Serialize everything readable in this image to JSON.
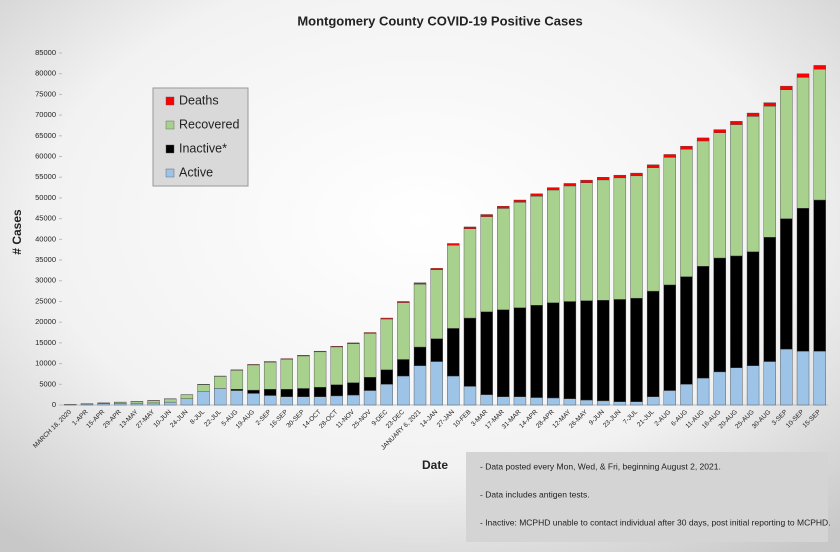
{
  "chart_data": {
    "type": "stacked_bar",
    "title": "Montgomery County COVID-19 Positive Cases",
    "y_label": "# Cases",
    "x_label": "Date",
    "categories": [
      "MARCH 18, 2020",
      "1-APR",
      "15-APR",
      "29-APR",
      "13-MAY",
      "27-MAY",
      "10-JUN",
      "24-JUN",
      "8-JUL",
      "22-JUL",
      "5-AUG",
      "19-AUG",
      "2-SEP",
      "16-SEP",
      "30-SEP",
      "14-OCT",
      "28-OCT",
      "11-NOV",
      "25-NOV",
      "9-DEC",
      "23-DEC",
      "JANUARY 6, 2021",
      "14-JAN",
      "27-JAN",
      "10-FEB",
      "3-MAR",
      "17-MAR",
      "31-MAR",
      "14-APR",
      "28-APR",
      "12-MAY",
      "26-MAY",
      "9-JUN",
      "23-JUN",
      "7-JUL",
      "21-JUL",
      "2-AUG",
      "6-AUG",
      "11-AUG",
      "16-AUG",
      "20-AUG",
      "25-AUG",
      "30-AUG",
      "3-SEP",
      "10-SEP",
      "15-SEP"
    ],
    "series": [
      {
        "name": "Active",
        "color": "#9dc3e6",
        "values": [
          90,
          250,
          350,
          400,
          450,
          500,
          700,
          1500,
          3200,
          4000,
          3500,
          2800,
          2300,
          2000,
          2000,
          2000,
          2200,
          2400,
          3500,
          5000,
          7000,
          9500,
          10500,
          7000,
          4500,
          2500,
          2000,
          2000,
          1800,
          1700,
          1500,
          1200,
          1000,
          800,
          800,
          2000,
          3500,
          5000,
          6500,
          8000,
          9000,
          9500,
          10500,
          13500,
          13000,
          13000
        ]
      },
      {
        "name": "Inactive*",
        "color": "#000000",
        "values": [
          0,
          0,
          0,
          0,
          0,
          0,
          0,
          0,
          0,
          0,
          300,
          800,
          1500,
          1800,
          2000,
          2300,
          2700,
          3000,
          3200,
          3500,
          4000,
          4500,
          5500,
          11500,
          16500,
          20000,
          21000,
          21500,
          22300,
          23000,
          23500,
          24000,
          24300,
          24700,
          25000,
          25500,
          25500,
          26000,
          27000,
          27500,
          27000,
          27500,
          30000,
          31500,
          34500,
          36500
        ]
      },
      {
        "name": "Recovered",
        "color": "#a9d18e",
        "values": [
          8,
          45,
          140,
          285,
          430,
          575,
          770,
          960,
          1740,
          2920,
          4600,
          6080,
          6570,
          7260,
          7850,
          8540,
          9130,
          9420,
          10600,
          12270,
          13740,
          15200,
          16660,
          20100,
          21550,
          23000,
          24480,
          25460,
          26340,
          27220,
          27900,
          28480,
          29060,
          29350,
          29540,
          29820,
          30800,
          30780,
          30260,
          30240,
          31720,
          32700,
          31680,
          31150,
          31620,
          31600
        ]
      },
      {
        "name": "Deaths",
        "color": "#ff0000",
        "values": [
          2,
          5,
          10,
          15,
          20,
          25,
          30,
          40,
          60,
          80,
          100,
          120,
          130,
          140,
          150,
          160,
          170,
          180,
          200,
          230,
          260,
          300,
          340,
          400,
          450,
          500,
          520,
          540,
          560,
          580,
          600,
          620,
          640,
          650,
          660,
          680,
          700,
          720,
          740,
          760,
          780,
          800,
          820,
          850,
          880,
          900
        ]
      }
    ],
    "ylim": [
      0,
      85000
    ],
    "yticks": [
      0,
      5000,
      10000,
      15000,
      20000,
      25000,
      30000,
      35000,
      40000,
      45000,
      50000,
      55000,
      60000,
      65000,
      70000,
      75000,
      80000,
      85000
    ],
    "grid": false,
    "legend": "upper left",
    "notes": [
      "- Data posted every Mon, Wed, & Fri, beginning August 2, 2021.",
      "- Data includes antigen tests.",
      "- Inactive: MCPHD unable to contact individual after 30 days, post initial reporting to MCPHD."
    ]
  }
}
